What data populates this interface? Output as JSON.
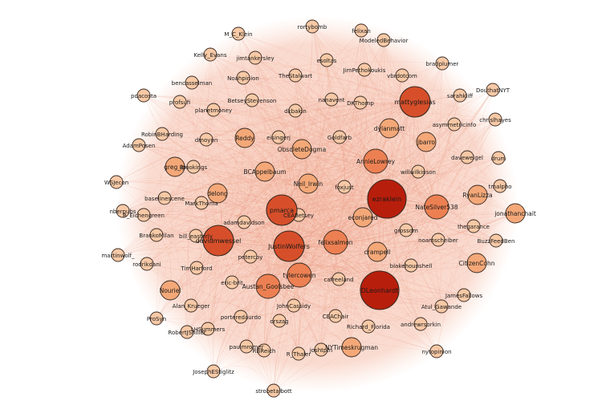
{
  "graph": {
    "edge_color": "#e8957a",
    "node_stroke": "#3a2a22",
    "color_scale": [
      "#f7c9a6",
      "#f4a878",
      "#ec8052",
      "#d64f2a",
      "#b81e0c"
    ],
    "nodes": [
      {
        "id": "ezraklein",
        "label": "ezraklein",
        "weight": 5
      },
      {
        "id": "DLeonhardt",
        "label": "DLeonhardt",
        "weight": 5
      },
      {
        "id": "davidmwessel",
        "label": "davidmwessel",
        "weight": 4
      },
      {
        "id": "pmarca",
        "label": "pmarca",
        "weight": 4
      },
      {
        "id": "mattyglesias",
        "label": "mattyglesias",
        "weight": 4
      },
      {
        "id": "JustinWolfers",
        "label": "JustinWolfers",
        "weight": 4
      },
      {
        "id": "felixsalmon",
        "label": "felixsalmon",
        "weight": 3
      },
      {
        "id": "AnnieLowrey",
        "label": "AnnieLowrey",
        "weight": 3
      },
      {
        "id": "NateSilver538",
        "label": "NateSilver538",
        "weight": 3
      },
      {
        "id": "Austan_Goolsbee",
        "label": "Austan_Goolsbee",
        "weight": 3
      },
      {
        "id": "tylercowen",
        "label": "tylercowen",
        "weight": 3
      },
      {
        "id": "Neil_Irwin",
        "label": "Neil_Irwin",
        "weight": 2
      },
      {
        "id": "delong",
        "label": "delong",
        "weight": 2
      },
      {
        "id": "jbarro",
        "label": "jbarro",
        "weight": 2
      },
      {
        "id": "ObsoleteDogma",
        "label": "ObsoleteDogma",
        "weight": 2
      },
      {
        "id": "crampell",
        "label": "crampell",
        "weight": 2
      },
      {
        "id": "greg_ip",
        "label": "greg_ip",
        "weight": 2
      },
      {
        "id": "Reddy",
        "label": "Reddy",
        "weight": 2
      },
      {
        "id": "CitizenCohn",
        "label": "CitizenCohn",
        "weight": 2
      },
      {
        "id": "jonathanchait",
        "label": "jonathanchait",
        "weight": 2
      },
      {
        "id": "RyanLizza",
        "label": "RyanLizza",
        "weight": 2
      },
      {
        "id": "NYTimeskrugman",
        "label": "NYTimeskrugman",
        "weight": 2
      },
      {
        "id": "Nouriel",
        "label": "Nouriel",
        "weight": 2
      },
      {
        "id": "dylanmatt",
        "label": "dylanmatt",
        "weight": 2
      },
      {
        "id": "BCAppelbaum",
        "label": "BCAppelbaum",
        "weight": 2
      },
      {
        "id": "econjared",
        "label": "econjared",
        "weight": 2
      },
      {
        "id": "M_C_Klein",
        "label": "M_C_Klein",
        "weight": 1
      },
      {
        "id": "rortybomb",
        "label": "rortybomb",
        "weight": 1
      },
      {
        "id": "felixan",
        "label": "felixan",
        "weight": 1
      },
      {
        "id": "ModeledBehavior",
        "label": "ModeledBehavior",
        "weight": 1
      },
      {
        "id": "Kelly_Evans",
        "label": "Kelly_Evans",
        "weight": 1
      },
      {
        "id": "jimtankersley",
        "label": "jimtankersley",
        "weight": 1
      },
      {
        "id": "esoltas",
        "label": "esoltas",
        "weight": 1
      },
      {
        "id": "JimPethokoukis",
        "label": "JimPethokoukis",
        "weight": 1
      },
      {
        "id": "bradplumer",
        "label": "bradplumer",
        "weight": 1
      },
      {
        "id": "vbrdotcom",
        "label": "vbrdotcom",
        "weight": 1
      },
      {
        "id": "Noahpinion",
        "label": "Noahpinion",
        "weight": 1
      },
      {
        "id": "TheStalwart",
        "label": "TheStalwart",
        "weight": 1
      },
      {
        "id": "bencasselman",
        "label": "bencasselman",
        "weight": 1
      },
      {
        "id": "DouthatNYT",
        "label": "DouthatNYT",
        "weight": 1
      },
      {
        "id": "pdacosta",
        "label": "pdacosta",
        "weight": 1
      },
      {
        "id": "profsufi",
        "label": "profsufi",
        "weight": 1
      },
      {
        "id": "BetseyStevenson",
        "label": "BetseyStevenson",
        "weight": 1
      },
      {
        "id": "nanavent",
        "label": "nanavent",
        "weight": 1
      },
      {
        "id": "sarahkliff",
        "label": "sarahkliff",
        "weight": 1
      },
      {
        "id": "planetmoney",
        "label": "planetmoney",
        "weight": 1
      },
      {
        "id": "dkbakin",
        "label": "dkbakin",
        "weight": 1
      },
      {
        "id": "DKThomp",
        "label": "DKThomp",
        "weight": 1
      },
      {
        "id": "asymmetricinfo",
        "label": "asymmetricinfo",
        "weight": 1
      },
      {
        "id": "chrislhayes",
        "label": "chrislhayes",
        "weight": 1
      },
      {
        "id": "RobinBHarding",
        "label": "RobinBHarding",
        "weight": 1
      },
      {
        "id": "dmoynn",
        "label": "dmoynn",
        "weight": 1
      },
      {
        "id": "eisingerj",
        "label": "eisingerj",
        "weight": 1
      },
      {
        "id": "Goldfarb",
        "label": "Goldfarb",
        "weight": 1
      },
      {
        "id": "AdamPosen",
        "label": "AdamPosen",
        "weight": 1
      },
      {
        "id": "Brookings",
        "label": "Brookings",
        "weight": 1
      },
      {
        "id": "daveweigel",
        "label": "daveweigel",
        "weight": 1
      },
      {
        "id": "drum",
        "label": "drum",
        "weight": 1
      },
      {
        "id": "WSJecon",
        "label": "WSJecon",
        "weight": 1
      },
      {
        "id": "foxjust",
        "label": "foxjust",
        "weight": 1
      },
      {
        "id": "willwilkinson",
        "label": "willwilkinson",
        "weight": 1
      },
      {
        "id": "tmalpho",
        "label": "tmalpho",
        "weight": 1
      },
      {
        "id": "baselinescene",
        "label": "baselinescene",
        "weight": 1
      },
      {
        "id": "MarkThoma",
        "label": "MarkThoma",
        "weight": 1
      },
      {
        "id": "nberpubs",
        "label": "nberpubs",
        "weight": 1
      },
      {
        "id": "B_Eichengreen",
        "label": "B_Eichengreen",
        "weight": 1
      },
      {
        "id": "CEABetsey",
        "label": "CEABetsey",
        "weight": 1
      },
      {
        "id": "thegarance",
        "label": "thegarance",
        "weight": 1
      },
      {
        "id": "adamdavidson",
        "label": "adamdavidson",
        "weight": 1
      },
      {
        "id": "BrankoMilan",
        "label": "BrankoMilan",
        "weight": 1
      },
      {
        "id": "bill_easterly",
        "label": "bill_easterly",
        "weight": 1
      },
      {
        "id": "grossdm",
        "label": "grossdm",
        "weight": 1
      },
      {
        "id": "noamscheiber",
        "label": "noamscheiber",
        "weight": 1
      },
      {
        "id": "BuzzFeedBen",
        "label": "BuzzFeedBen",
        "weight": 1
      },
      {
        "id": "martinwolf_",
        "label": "martinwolf_",
        "weight": 1
      },
      {
        "id": "petercoy",
        "label": "petercoy",
        "weight": 1
      },
      {
        "id": "rodrikdani",
        "label": "rodrikdani",
        "weight": 1
      },
      {
        "id": "blakehounshell",
        "label": "blakehounshell",
        "weight": 1
      },
      {
        "id": "TimHarford",
        "label": "TimHarford",
        "weight": 1
      },
      {
        "id": "cafreeland",
        "label": "cafreeland",
        "weight": 1
      },
      {
        "id": "ericbrit",
        "label": "eric-brit",
        "weight": 1
      },
      {
        "id": "JamesFallows",
        "label": "JamesFallows",
        "weight": 1
      },
      {
        "id": "Alan_Krueger",
        "label": "Alan_Krueger",
        "weight": 1
      },
      {
        "id": "JohnCassidy",
        "label": "JohnCassidy",
        "weight": 1
      },
      {
        "id": "Atul_Gawande",
        "label": "Atul_Gawande",
        "weight": 1
      },
      {
        "id": "porteredaurdo",
        "label": "porteredaurdo",
        "weight": 1
      },
      {
        "id": "CEAChair",
        "label": "CEAChair",
        "weight": 1
      },
      {
        "id": "ProSyn",
        "label": "ProSyn",
        "weight": 1
      },
      {
        "id": "orszag",
        "label": "orszag",
        "weight": 1
      },
      {
        "id": "Richard_Florida",
        "label": "Richard_Florida",
        "weight": 1
      },
      {
        "id": "andrewrsorkin",
        "label": "andrewrsorkin",
        "weight": 1
      },
      {
        "id": "RobertJShiller",
        "label": "RobertJShiller",
        "weight": 1
      },
      {
        "id": "LHSummers",
        "label": "LHSummers",
        "weight": 1
      },
      {
        "id": "paulmromer",
        "label": "paulmromer",
        "weight": 1
      },
      {
        "id": "RBReich",
        "label": "RBReich",
        "weight": 1
      },
      {
        "id": "R_Thaler",
        "label": "R_Thaler",
        "weight": 1
      },
      {
        "id": "joshtpm",
        "label": "joshtpm",
        "weight": 1
      },
      {
        "id": "nytopinion",
        "label": "nytopinion",
        "weight": 1
      },
      {
        "id": "JosephEStiglitz",
        "label": "JosephEStiglitz",
        "weight": 1
      },
      {
        "id": "strobetalbott",
        "label": "strobetalbott",
        "weight": 1
      }
    ]
  }
}
